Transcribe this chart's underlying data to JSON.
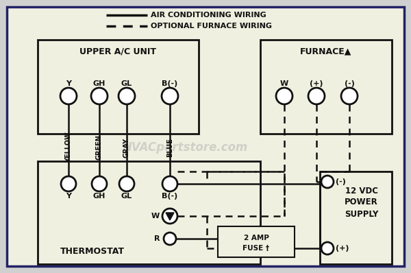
{
  "bg_color": "#f0f0e0",
  "outer_bg": "#d0d0d0",
  "line_color": "#111111",
  "text_color": "#111111",
  "watermark": "HVACpartstore.com",
  "watermark_color": "#bbbbbb",
  "legend_solid": "AIR CONDITIONING WIRING",
  "legend_dashed": "OPTIONAL FURNACE WIRING",
  "upper_ac_label": "UPPER A/C UNIT",
  "furnace_label": "FURNACE▲",
  "thermostat_label": "THERMOSTAT",
  "power_supply_lines": [
    "12 VDC",
    "POWER",
    "SUPPLY"
  ],
  "upper_ac_terminals": [
    "Y",
    "GH",
    "GL",
    "B(-)"
  ],
  "thermostat_terminals": [
    "Y",
    "GH",
    "GL",
    "B(-)"
  ],
  "furnace_terminals": [
    "W",
    "(+)",
    "(-)"
  ],
  "wire_labels": [
    "YELLOW",
    "GREEN",
    "GRAY",
    "BLUE"
  ],
  "fuse_line1": "2 AMP",
  "fuse_line2": "FUSE †",
  "power_neg": "(-)",
  "power_pos": "(+)",
  "therm_w": "W",
  "therm_r": "R"
}
